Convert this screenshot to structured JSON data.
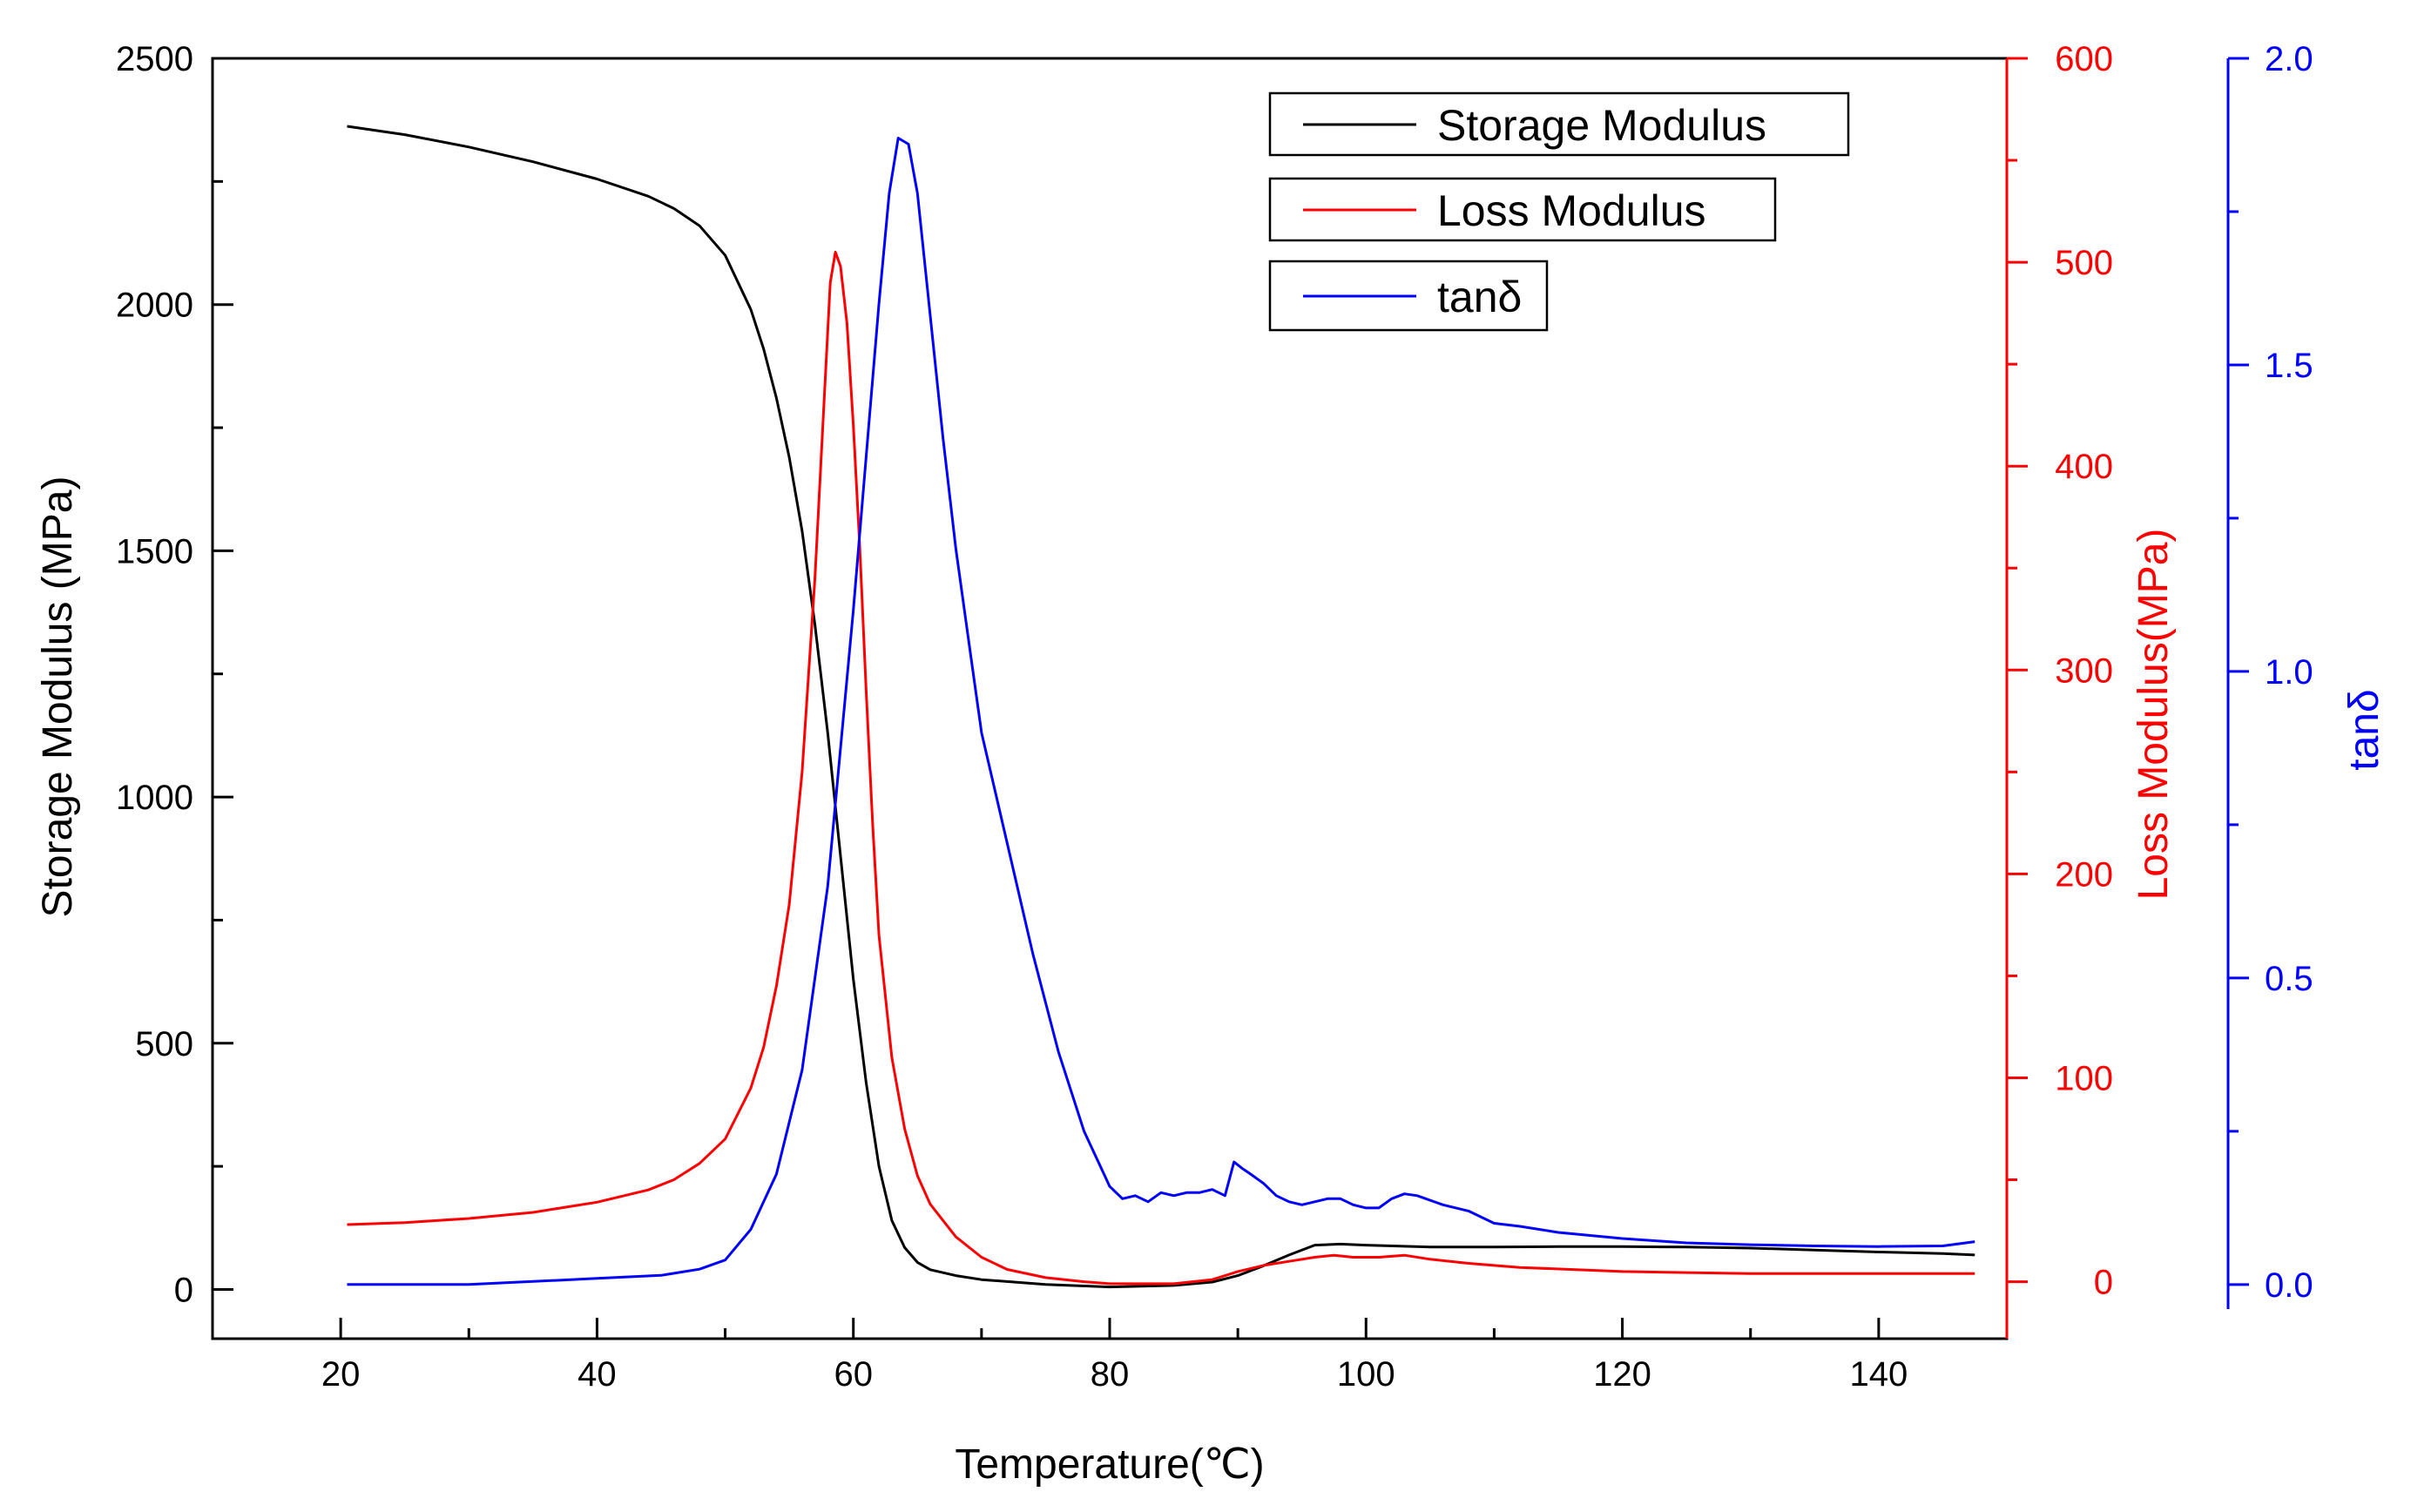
{
  "chart_data": {
    "type": "line",
    "title": "",
    "xlabel": "Temperature(℃)",
    "xlim": [
      10,
      150
    ],
    "x_ticks": [
      "20",
      "40",
      "60",
      "80",
      "100",
      "120",
      "140"
    ],
    "axes": {
      "left": {
        "label": "Storage Modulus (MPa)",
        "lim": [
          -100,
          2500
        ],
        "ticks": [
          "0",
          "500",
          "1000",
          "1500",
          "2000",
          "2500"
        ],
        "color": "#000000"
      },
      "right1": {
        "label": "Loss Modulus(MPa)",
        "lim": [
          -10,
          600
        ],
        "ticks": [
          "0",
          "100",
          "200",
          "300",
          "400",
          "500",
          "600"
        ],
        "color": "#ff0000"
      },
      "right2": {
        "label": "tanδ",
        "lim": [
          -0.04,
          2.0
        ],
        "ticks": [
          "0.0",
          "0.5",
          "1.0",
          "1.5",
          "2.0"
        ],
        "color": "#0000ff"
      }
    },
    "legend": {
      "position": "top-right",
      "entries": [
        "Storage Modulus",
        "Loss Modulus",
        "tanδ"
      ]
    },
    "series": [
      {
        "name": "Storage Modulus",
        "axis": "left",
        "color": "#000000",
        "points": [
          [
            20.5,
            2362
          ],
          [
            25,
            2345
          ],
          [
            30,
            2320
          ],
          [
            35,
            2290
          ],
          [
            40,
            2255
          ],
          [
            44,
            2220
          ],
          [
            46,
            2195
          ],
          [
            48,
            2160
          ],
          [
            50,
            2100
          ],
          [
            52,
            1990
          ],
          [
            53,
            1910
          ],
          [
            54,
            1810
          ],
          [
            55,
            1690
          ],
          [
            56,
            1540
          ],
          [
            57,
            1350
          ],
          [
            58,
            1130
          ],
          [
            59,
            880
          ],
          [
            60,
            630
          ],
          [
            61,
            420
          ],
          [
            62,
            250
          ],
          [
            63,
            140
          ],
          [
            64,
            85
          ],
          [
            65,
            55
          ],
          [
            66,
            40
          ],
          [
            68,
            28
          ],
          [
            70,
            20
          ],
          [
            75,
            10
          ],
          [
            80,
            5
          ],
          [
            85,
            8
          ],
          [
            88,
            15
          ],
          [
            90,
            28
          ],
          [
            92,
            48
          ],
          [
            94,
            70
          ],
          [
            96,
            90
          ],
          [
            98,
            92
          ],
          [
            100,
            90
          ],
          [
            105,
            86
          ],
          [
            110,
            86
          ],
          [
            115,
            87
          ],
          [
            120,
            87
          ],
          [
            125,
            86
          ],
          [
            130,
            84
          ],
          [
            135,
            80
          ],
          [
            140,
            76
          ],
          [
            145,
            73
          ],
          [
            147.5,
            70
          ]
        ]
      },
      {
        "name": "Loss Modulus",
        "axis": "right1",
        "color": "#ff0000",
        "points": [
          [
            20.5,
            28
          ],
          [
            25,
            29
          ],
          [
            30,
            31
          ],
          [
            35,
            34
          ],
          [
            40,
            39
          ],
          [
            44,
            45
          ],
          [
            46,
            50
          ],
          [
            48,
            58
          ],
          [
            50,
            70
          ],
          [
            52,
            95
          ],
          [
            53,
            115
          ],
          [
            54,
            145
          ],
          [
            55,
            185
          ],
          [
            56,
            250
          ],
          [
            57,
            345
          ],
          [
            57.7,
            430
          ],
          [
            58.2,
            490
          ],
          [
            58.6,
            505
          ],
          [
            59,
            498
          ],
          [
            59.5,
            470
          ],
          [
            60,
            420
          ],
          [
            60.5,
            360
          ],
          [
            61,
            290
          ],
          [
            61.5,
            225
          ],
          [
            62,
            170
          ],
          [
            63,
            110
          ],
          [
            64,
            75
          ],
          [
            65,
            52
          ],
          [
            66,
            38
          ],
          [
            68,
            22
          ],
          [
            70,
            12
          ],
          [
            72,
            6
          ],
          [
            75,
            2
          ],
          [
            78,
            0
          ],
          [
            80,
            -1
          ],
          [
            82,
            -1
          ],
          [
            85,
            -1
          ],
          [
            88,
            1
          ],
          [
            90,
            5
          ],
          [
            92,
            8
          ],
          [
            94,
            10
          ],
          [
            96,
            12
          ],
          [
            97.5,
            13
          ],
          [
            99,
            12
          ],
          [
            101,
            12
          ],
          [
            103,
            13
          ],
          [
            105,
            11
          ],
          [
            108,
            9
          ],
          [
            112,
            7
          ],
          [
            120,
            5
          ],
          [
            130,
            4
          ],
          [
            140,
            4
          ],
          [
            147.5,
            4
          ]
        ]
      },
      {
        "name": "tanδ",
        "axis": "right2",
        "color": "#0000ff",
        "points": [
          [
            20.5,
            0.0
          ],
          [
            30,
            0.0
          ],
          [
            40,
            0.01
          ],
          [
            45,
            0.015
          ],
          [
            48,
            0.025
          ],
          [
            50,
            0.04
          ],
          [
            52,
            0.09
          ],
          [
            54,
            0.18
          ],
          [
            56,
            0.35
          ],
          [
            58,
            0.65
          ],
          [
            60,
            1.1
          ],
          [
            61,
            1.35
          ],
          [
            62,
            1.6
          ],
          [
            62.8,
            1.78
          ],
          [
            63.5,
            1.87
          ],
          [
            64.3,
            1.86
          ],
          [
            65,
            1.78
          ],
          [
            66,
            1.58
          ],
          [
            67,
            1.38
          ],
          [
            68,
            1.2
          ],
          [
            69,
            1.05
          ],
          [
            70,
            0.9
          ],
          [
            72,
            0.72
          ],
          [
            74,
            0.54
          ],
          [
            76,
            0.38
          ],
          [
            78,
            0.25
          ],
          [
            80,
            0.16
          ],
          [
            81,
            0.14
          ],
          [
            82,
            0.145
          ],
          [
            83,
            0.135
          ],
          [
            84,
            0.15
          ],
          [
            85,
            0.145
          ],
          [
            86,
            0.15
          ],
          [
            87,
            0.15
          ],
          [
            88,
            0.155
          ],
          [
            89,
            0.145
          ],
          [
            89.7,
            0.2
          ],
          [
            90.3,
            0.19
          ],
          [
            91,
            0.18
          ],
          [
            92,
            0.165
          ],
          [
            93,
            0.145
          ],
          [
            94,
            0.135
          ],
          [
            95,
            0.13
          ],
          [
            96,
            0.135
          ],
          [
            97,
            0.14
          ],
          [
            98,
            0.14
          ],
          [
            99,
            0.13
          ],
          [
            100,
            0.125
          ],
          [
            101,
            0.125
          ],
          [
            102,
            0.14
          ],
          [
            103,
            0.148
          ],
          [
            104,
            0.145
          ],
          [
            106,
            0.13
          ],
          [
            108,
            0.12
          ],
          [
            110,
            0.1
          ],
          [
            112,
            0.095
          ],
          [
            115,
            0.085
          ],
          [
            120,
            0.075
          ],
          [
            125,
            0.068
          ],
          [
            130,
            0.065
          ],
          [
            135,
            0.063
          ],
          [
            140,
            0.062
          ],
          [
            145,
            0.063
          ],
          [
            147.5,
            0.07
          ]
        ]
      }
    ]
  }
}
